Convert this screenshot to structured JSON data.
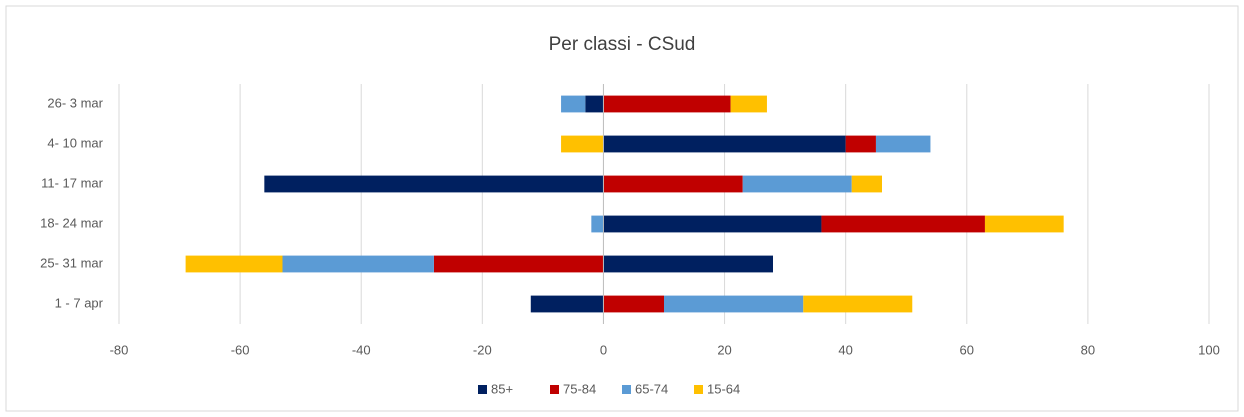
{
  "chart_data": {
    "type": "stacked_hbar",
    "title": "Per classi - CSud",
    "categories": [
      "26- 3 mar",
      "4- 10 mar",
      "11- 17 mar",
      "18- 24 mar",
      "25- 31 mar",
      "1 -  7 apr"
    ],
    "series": [
      {
        "name": "85+",
        "color": "#002060",
        "values": [
          -3,
          40,
          -56,
          36,
          28,
          -12
        ]
      },
      {
        "name": "75-84",
        "color": "#c00000",
        "values": [
          21,
          5,
          23,
          27,
          -28,
          10
        ]
      },
      {
        "name": "65-74",
        "color": "#5b9bd5",
        "values": [
          -4,
          9,
          18,
          -2,
          -25,
          23
        ]
      },
      {
        "name": "15-64",
        "color": "#ffc000",
        "values": [
          6,
          -7,
          5,
          13,
          -16,
          18
        ]
      }
    ],
    "xlim": [
      -80,
      100
    ],
    "xticks": [
      -80,
      -60,
      -40,
      -20,
      0,
      20,
      40,
      60,
      80,
      100
    ],
    "grid": true,
    "legend": "bottom"
  }
}
